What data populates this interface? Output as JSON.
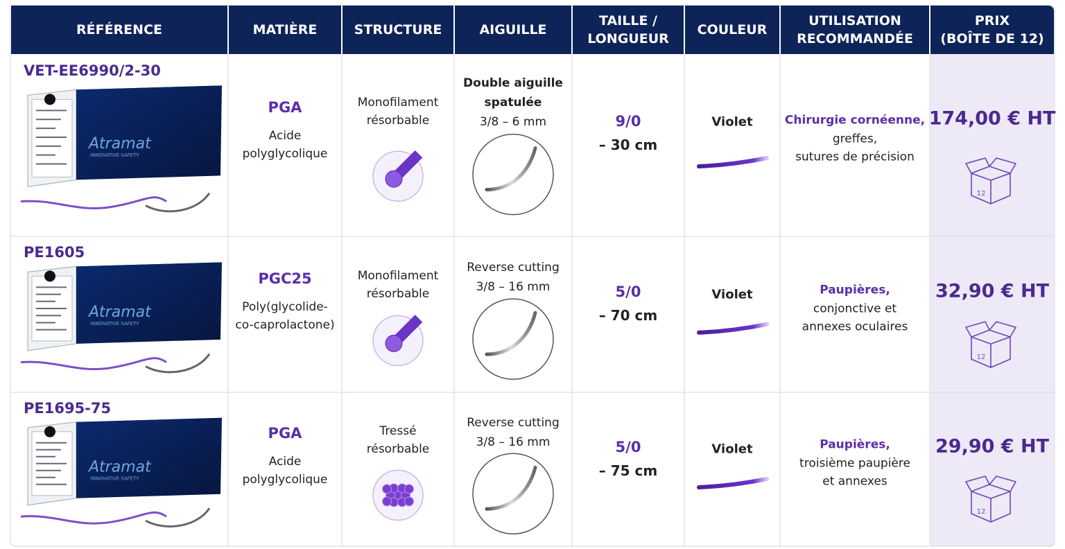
{
  "brand": "Atramat",
  "brand_tagline": "INNOVATIVE SAFETY",
  "box_label": "12",
  "table": {
    "headers": [
      [
        "RÉFÉRENCE"
      ],
      [
        "MATIÈRE"
      ],
      [
        "STRUCTURE"
      ],
      [
        "AIGUILLE"
      ],
      [
        "TAILLE /",
        "LONGUEUR"
      ],
      [
        "COULEUR"
      ],
      [
        "UTILISATION",
        "RECOMMANDÉE"
      ],
      [
        "PRIX",
        "(BOÎTE DE 12)"
      ]
    ],
    "rows": [
      {
        "reference": "VET-EE6990/2-30",
        "material_code": "PGA",
        "material_name": [
          "Acide",
          "polyglycolique"
        ],
        "structure": [
          "Monofilament",
          "résorbable"
        ],
        "needle": [
          "Double aiguille",
          "spatulée"
        ],
        "needle_spec": "3/8 – 6 mm",
        "size": "9/0",
        "length": "– 30 cm",
        "color": "Violet",
        "usage_highlight": "Chirurgie cornéenne,",
        "usage": [
          "greffes,",
          "sutures de précision"
        ],
        "price": "174,00 € HT"
      },
      {
        "reference": "PE1605",
        "material_code": "PGC25",
        "material_name": [
          "Poly(glycolide-",
          "co-caprolactone)"
        ],
        "structure": [
          "Monofilament",
          "résorbable"
        ],
        "needle": [
          "Reverse cutting"
        ],
        "needle_spec": "3/8 – 16 mm",
        "size": "5/0",
        "length": "– 70 cm",
        "color": "Violet",
        "usage_highlight": "Paupières,",
        "usage": [
          "conjonctive et",
          "annexes oculaires"
        ],
        "price": "32,90 € HT"
      },
      {
        "reference": "PE1695-75",
        "material_code": "PGA",
        "material_name": [
          "Acide",
          "polyglycolique"
        ],
        "structure": [
          "Tressé",
          "résorbable"
        ],
        "needle": [
          "Reverse cutting"
        ],
        "needle_spec": "3/8 – 16 mm",
        "size": "5/0",
        "length": "– 75 cm",
        "color": "Violet",
        "usage_highlight": "Paupières,",
        "usage": [
          "troisième paupière",
          "et annexes"
        ],
        "price": "29,90 € HT"
      }
    ]
  }
}
